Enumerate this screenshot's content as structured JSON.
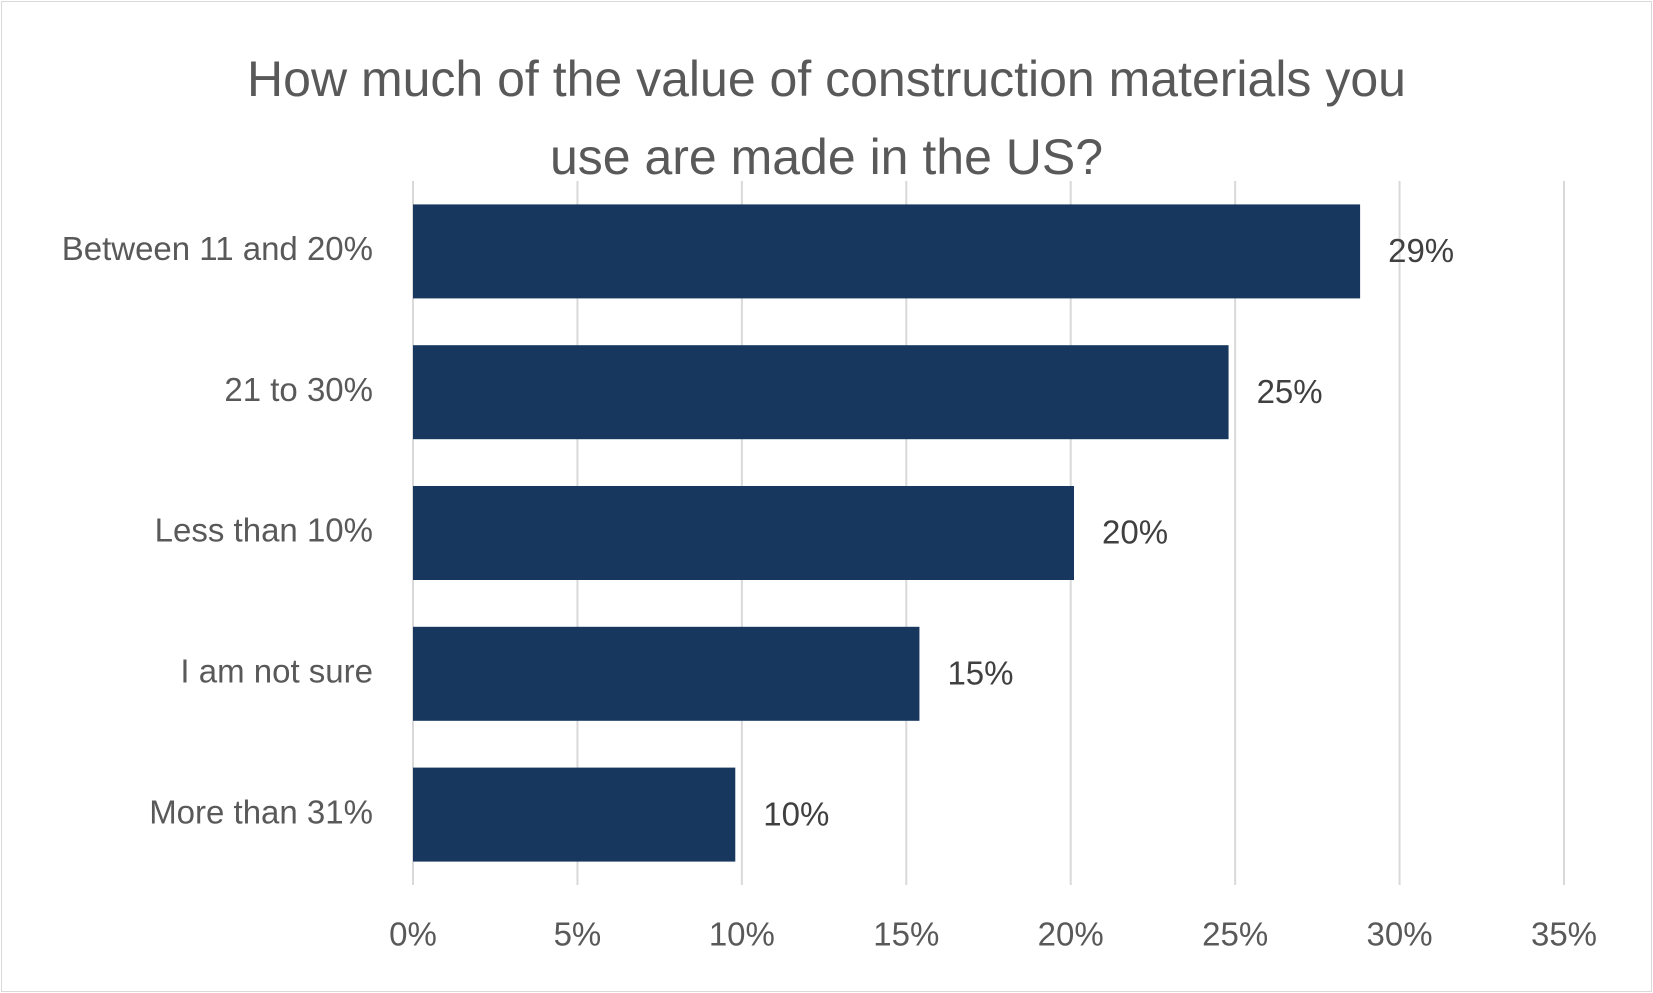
{
  "chart_data": {
    "type": "hbar",
    "title": "How much of the value of construction materials you use are made in the US?",
    "categories": [
      "Between 11 and 20%",
      "21 to 30%",
      "Less than 10%",
      "I am not sure",
      "More than 31%"
    ],
    "values": [
      28.8,
      24.8,
      20.1,
      15.4,
      9.8
    ],
    "value_labels": [
      "29%",
      "25%",
      "20%",
      "15%",
      "10%"
    ],
    "color": "#17375e",
    "xlim": [
      0,
      35
    ],
    "xticks": [
      {
        "value": 0,
        "label": "0%"
      },
      {
        "value": 5,
        "label": "5%"
      },
      {
        "value": 10,
        "label": "10%"
      },
      {
        "value": 15,
        "label": "15%"
      },
      {
        "value": 20,
        "label": "20%"
      },
      {
        "value": 25,
        "label": "25%"
      },
      {
        "value": 30,
        "label": "30%"
      },
      {
        "value": 35,
        "label": "35%"
      }
    ],
    "grid": true
  }
}
